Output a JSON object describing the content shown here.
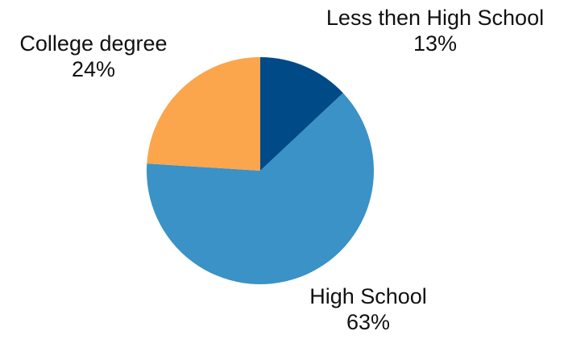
{
  "chart_data": {
    "type": "pie",
    "title": "",
    "slices": [
      {
        "label": "Less then High School",
        "value": 13,
        "value_label": "13%",
        "color": "#004a87"
      },
      {
        "label": "High School",
        "value": 63,
        "value_label": "63%",
        "color": "#3a92c6"
      },
      {
        "label": "College degree",
        "value": 24,
        "value_label": "24%",
        "color": "#fba54d"
      }
    ],
    "start": "12 o'clock",
    "direction": "clockwise",
    "legend": "none"
  }
}
